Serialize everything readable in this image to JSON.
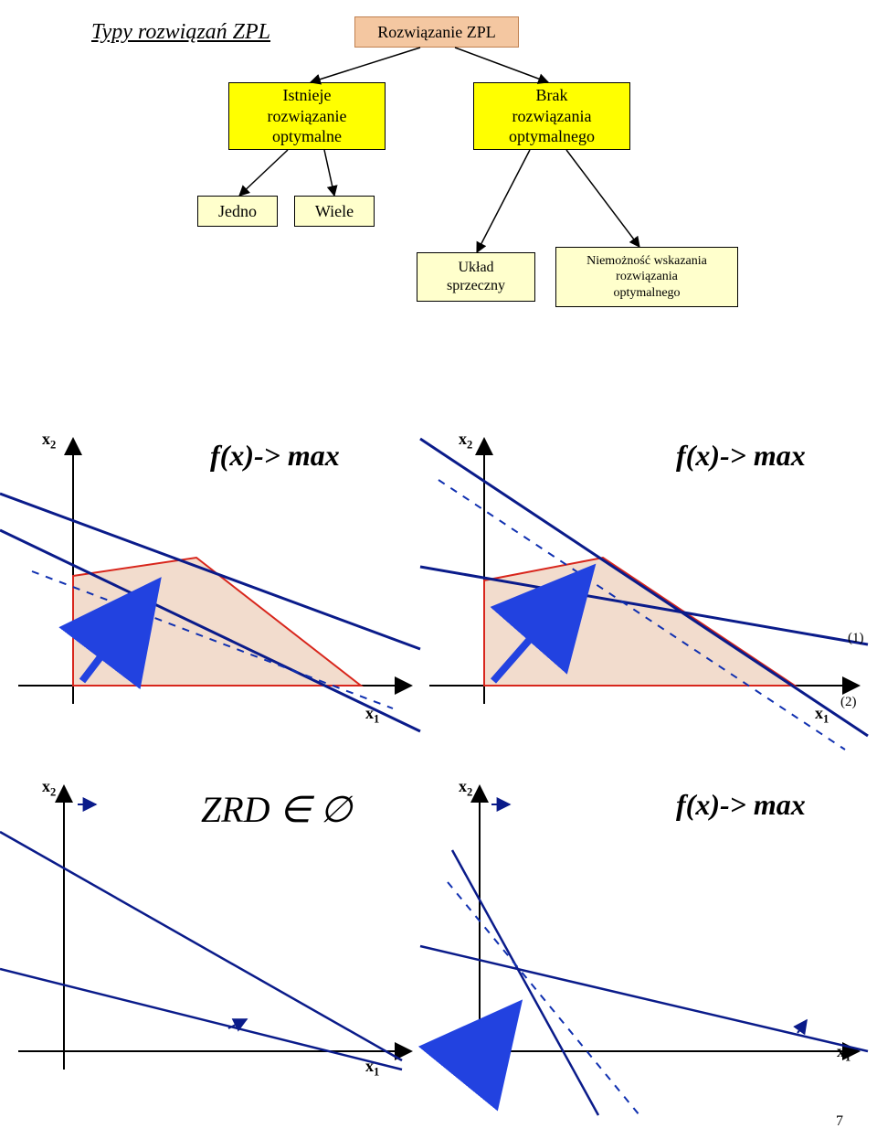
{
  "title": "Typy rozwiązań ZPL",
  "tree": {
    "root": {
      "label": "Rozwiązanie ZPL",
      "bg": "#f4c7a1",
      "border": "#c08050"
    },
    "left": {
      "label": "Istnieje\nrozwiązanie\noptymalne",
      "bg": "#ffff00"
    },
    "right": {
      "label": "Brak\nrozwiązania\noptymalnego",
      "bg": "#ffff00"
    },
    "jedno": {
      "label": "Jedno",
      "bg": "#ffffcc"
    },
    "wiele": {
      "label": "Wiele",
      "bg": "#ffffcc"
    },
    "sprz": {
      "label": "Układ\nsprzeczny",
      "bg": "#ffffcc"
    },
    "niem": {
      "label": "Niemożność wskazania\nrozwiązania\noptymalnego",
      "bg": "#ffffcc"
    }
  },
  "tree_edge_color": "#000000",
  "plots": {
    "axis_y_label": "x",
    "axis_y_sub": "2",
    "axis_x_label": "x",
    "axis_x_sub": "1",
    "objective_label": "f(x)-> max",
    "zrd_label": "ZRD ∈ ∅",
    "constraint1": "(1)",
    "constraint2": "(2)",
    "colors": {
      "axis": "#000000",
      "line": "#0a1b8a",
      "vector": "#2242e0",
      "dashed": "#1030b0",
      "region_fill": "#f2dccd",
      "region_stroke": "#d8261c"
    }
  },
  "pagenum": "7",
  "arrowhead": {
    "w": 12,
    "h": 8
  }
}
